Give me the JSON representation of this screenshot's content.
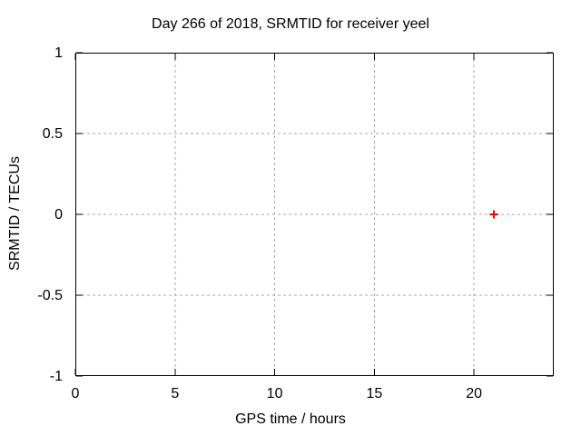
{
  "chart_data": {
    "type": "scatter",
    "title": "Day 266 of 2018, SRMTID for receiver yeel",
    "xlabel": "GPS time / hours",
    "ylabel": "SRMTID / TECUs",
    "xlim": [
      0,
      24
    ],
    "ylim": [
      -1,
      1
    ],
    "xticks": [
      0,
      5,
      10,
      15,
      20
    ],
    "xtick_labels": [
      "0",
      "5",
      "10",
      "15",
      "20"
    ],
    "yticks": [
      -1,
      -0.5,
      0,
      0.5,
      1
    ],
    "ytick_labels": [
      "-1",
      "-0.5",
      "0",
      "0.5",
      "1"
    ],
    "grid": true,
    "grid_style": "dashed",
    "legend_position": "none",
    "series": [
      {
        "marker": "plus",
        "color": "#ff0000",
        "points": [
          {
            "x": 21,
            "y": 0
          }
        ]
      }
    ],
    "colors": {
      "background": "#ffffff",
      "border": "#000000",
      "grid": "#a8a8a8",
      "text": "#000000",
      "point": "#ff0000"
    }
  }
}
